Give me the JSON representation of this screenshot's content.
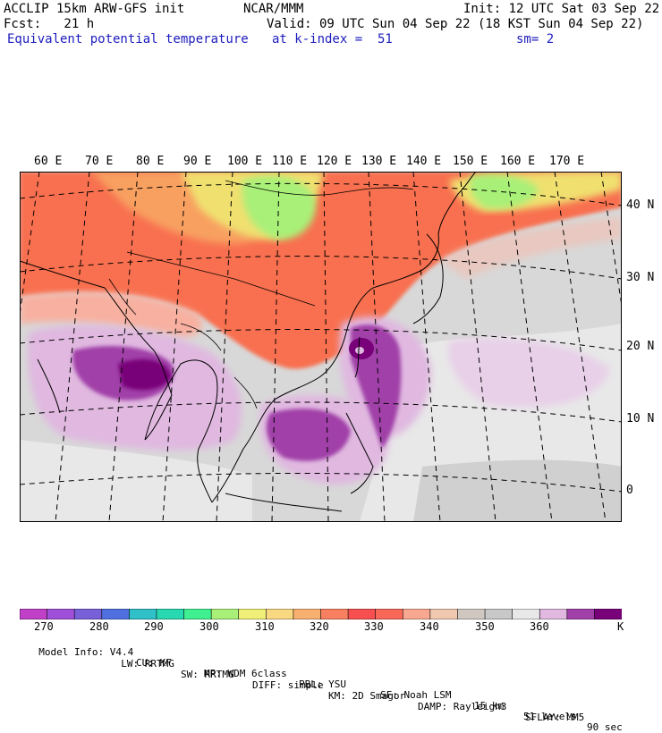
{
  "header": {
    "model": "ACCLIP 15km ARW-GFS init",
    "center": "NCAR/MMM",
    "init": "Init: 12 UTC Sat 03 Sep 22",
    "fcst": "Fcst:   21 h",
    "valid": "Valid: 09 UTC Sun 04 Sep 22 (18 KST Sun 04 Sep 22)",
    "field": "Equivalent potential temperature",
    "level": "at k-index =  51",
    "smooth": "sm= 2"
  },
  "map": {
    "lon_labels": [
      "60 E",
      "70 E",
      "80 E",
      "90 E",
      "100 E",
      "110 E",
      "120 E",
      "130 E",
      "140 E",
      "150 E",
      "160 E",
      "170 E"
    ],
    "lat_labels": [
      "40 N",
      "30 N",
      "20 N",
      "10 N",
      "0"
    ]
  },
  "colorbar": {
    "colors": [
      "#c040c8",
      "#a050d8",
      "#7860d8",
      "#5070e0",
      "#30c0c8",
      "#28d8b0",
      "#40f090",
      "#a8f078",
      "#f0f078",
      "#f8d880",
      "#f8b070",
      "#f88060",
      "#f85050",
      "#f86858",
      "#f8a890",
      "#f0c8b0",
      "#d0c8c0",
      "#c8c8c8",
      "#e8e8e8",
      "#e0b8e0",
      "#a040a8",
      "#780078"
    ],
    "labels": [
      "270",
      "280",
      "290",
      "300",
      "310",
      "320",
      "330",
      "340",
      "350",
      "360"
    ],
    "unit": "K"
  },
  "footer": {
    "line1": [
      "Model Info: V4.4",
      "CU: KF",
      "MP: WDM 6class",
      "PBL: YSU",
      "SF: Noah LSM",
      "15 km",
      "51 levels",
      "90 sec"
    ],
    "line2": [
      "LW: RRTMG",
      "SW: RRTMG",
      "DIFF: simple",
      "KM: 2D Smagor",
      "DAMP: Rayleigh3",
      "SFLAY: MM5"
    ]
  }
}
